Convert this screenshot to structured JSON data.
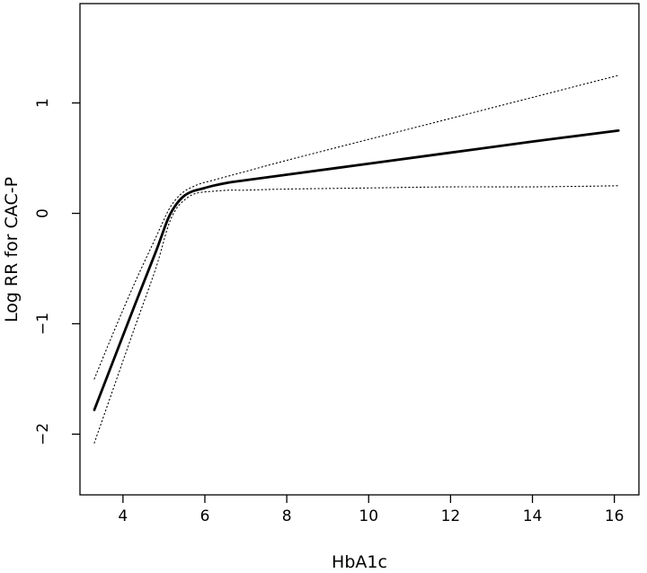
{
  "chart_data": {
    "type": "line",
    "xlabel": "HbA1c",
    "ylabel": "Log RR for CAC-P",
    "xlim": [
      2.95,
      16.6
    ],
    "ylim": [
      -2.55,
      1.9
    ],
    "xticks": [
      4,
      6,
      8,
      10,
      12,
      14,
      16
    ],
    "yticks": [
      -2,
      -1,
      0,
      1
    ],
    "ytick_labels": [
      "−2",
      "−1",
      "0",
      "1"
    ],
    "grid": false,
    "legend": "none",
    "series": [
      {
        "role": "estimate",
        "style": "solid",
        "x": [
          3.3,
          3.8,
          4.3,
          4.8,
          5.1,
          5.3,
          5.5,
          5.7,
          5.9,
          6.2,
          6.6,
          7.0,
          8.0,
          10.0,
          12.0,
          14.0,
          16.1
        ],
        "y": [
          -1.78,
          -1.3,
          -0.82,
          -0.35,
          -0.05,
          0.08,
          0.16,
          0.2,
          0.22,
          0.25,
          0.28,
          0.3,
          0.35,
          0.45,
          0.55,
          0.65,
          0.75
        ]
      },
      {
        "role": "upper-ci",
        "style": "dotted",
        "x": [
          3.3,
          3.8,
          4.3,
          4.8,
          5.1,
          5.3,
          5.5,
          5.7,
          5.9,
          6.2,
          6.6,
          7.0,
          8.0,
          10.0,
          12.0,
          14.0,
          16.1
        ],
        "y": [
          -1.5,
          -1.05,
          -0.62,
          -0.22,
          0.02,
          0.13,
          0.2,
          0.24,
          0.27,
          0.3,
          0.34,
          0.38,
          0.48,
          0.67,
          0.86,
          1.05,
          1.25
        ]
      },
      {
        "role": "lower-ci",
        "style": "dotted",
        "x": [
          3.3,
          3.8,
          4.3,
          4.8,
          5.1,
          5.3,
          5.5,
          5.7,
          5.9,
          6.2,
          6.6,
          7.0,
          8.0,
          10.0,
          12.0,
          14.0,
          16.1
        ],
        "y": [
          -2.08,
          -1.55,
          -1.02,
          -0.5,
          -0.12,
          0.04,
          0.12,
          0.17,
          0.19,
          0.2,
          0.21,
          0.21,
          0.22,
          0.23,
          0.24,
          0.24,
          0.25
        ]
      }
    ]
  }
}
